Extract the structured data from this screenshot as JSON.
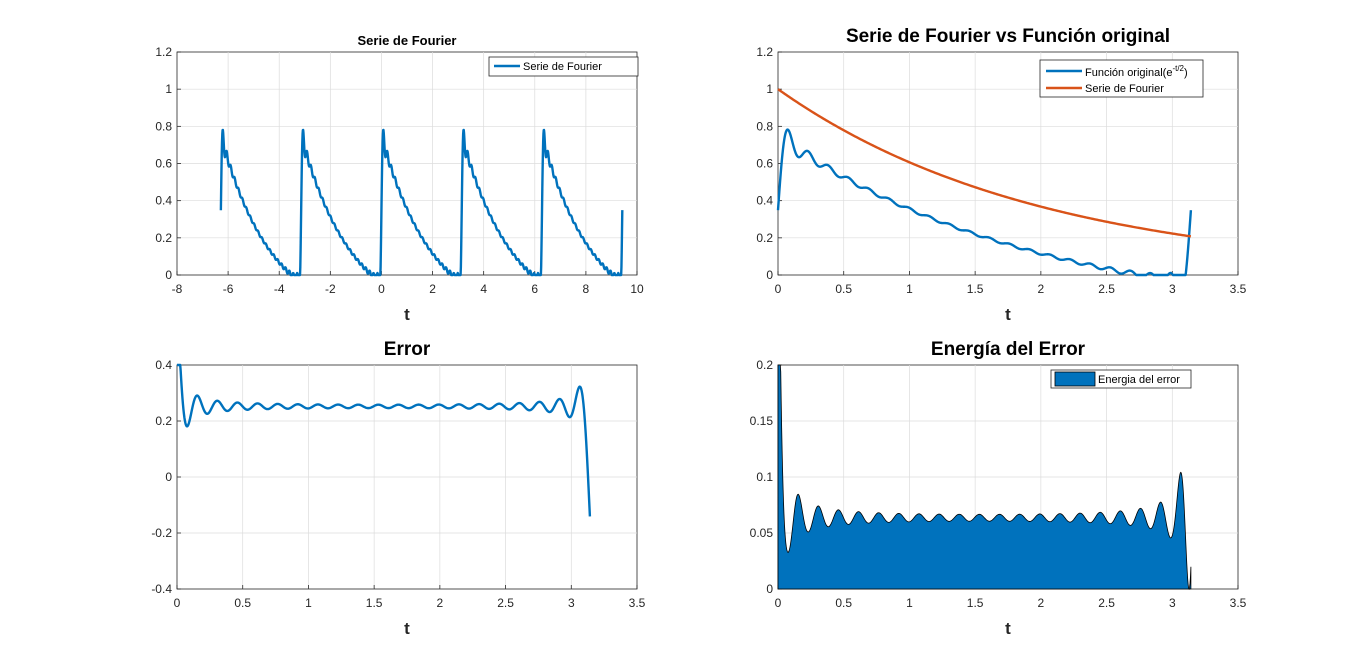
{
  "figure": {
    "background": "#ffffff"
  },
  "colors": {
    "series_blue": "#0072BD",
    "series_orange": "#D95319",
    "grid": "#dcdcdc",
    "axis": "#262626"
  },
  "chart_data": [
    {
      "id": "p1",
      "type": "line",
      "title": "Serie de Fourier",
      "title_style": "small",
      "xlabel": "t",
      "ylabel": "",
      "xlim": [
        -8,
        10
      ],
      "ylim": [
        0,
        1.2
      ],
      "xticks": [
        -8,
        -6,
        -4,
        -2,
        0,
        2,
        4,
        6,
        8,
        10
      ],
      "xtick_labels": [
        "-8",
        "-6",
        "-4",
        "-2",
        "0",
        "2",
        "4",
        "6",
        "8",
        "10"
      ],
      "yticks": [
        0,
        0.2,
        0.4,
        0.6,
        0.8,
        1,
        1.2
      ],
      "ytick_labels": [
        "0",
        "0.2",
        "0.4",
        "0.6",
        "0.8",
        "1",
        "1.2"
      ],
      "grid": true,
      "legend": {
        "placement": "top-right",
        "entries": [
          "Serie de Fourier"
        ]
      },
      "series": [
        {
          "name": "Serie de Fourier",
          "color": "#0072BD",
          "generator": "fourier_exp_periodic",
          "generator_params": {
            "harmonics": 20,
            "period_start": -6.2832,
            "period_end": 9.4248
          }
        }
      ]
    },
    {
      "id": "p2",
      "type": "line",
      "title": "Serie de Fourier vs Función original",
      "title_style": "large",
      "xlabel": "t",
      "ylabel": "",
      "xlim": [
        0,
        3.5
      ],
      "ylim": [
        0,
        1.2
      ],
      "xticks": [
        0,
        0.5,
        1,
        1.5,
        2,
        2.5,
        3,
        3.5
      ],
      "xtick_labels": [
        "0",
        "0.5",
        "1",
        "1.5",
        "2",
        "2.5",
        "3",
        "3.5"
      ],
      "yticks": [
        0,
        0.2,
        0.4,
        0.6,
        0.8,
        1,
        1.2
      ],
      "ytick_labels": [
        "0",
        "0.2",
        "0.4",
        "0.6",
        "0.8",
        "1",
        "1.2"
      ],
      "grid": true,
      "legend": {
        "placement": "top-right",
        "entries": [
          "Función original(e^-t/2)",
          "Serie de Fourier"
        ]
      },
      "series": [
        {
          "name": "Función original(e^-t/2)",
          "label_parts": {
            "base": "Función original(e",
            "sup": "-t/2",
            "tail": ")"
          },
          "color": "#0072BD",
          "generator": "fourier_exp_periodic",
          "generator_params": {
            "harmonics": 20,
            "period_start": 0,
            "period_end": 3.1416
          }
        },
        {
          "name": "Serie de Fourier",
          "color": "#D95319",
          "generator": "exp_neg_half",
          "generator_params": {
            "from": 0,
            "to": 3.1416
          }
        }
      ]
    },
    {
      "id": "p3",
      "type": "line",
      "title": "Error",
      "title_style": "large",
      "xlabel": "t",
      "ylabel": "",
      "xlim": [
        0,
        3.5
      ],
      "ylim": [
        -0.4,
        0.4
      ],
      "xticks": [
        0,
        0.5,
        1,
        1.5,
        2,
        2.5,
        3,
        3.5
      ],
      "xtick_labels": [
        "0",
        "0.5",
        "1",
        "1.5",
        "2",
        "2.5",
        "3",
        "3.5"
      ],
      "yticks": [
        -0.4,
        -0.2,
        0,
        0.2,
        0.4
      ],
      "ytick_labels": [
        "-0.4",
        "-0.2",
        "0",
        "0.2",
        "0.4"
      ],
      "grid": true,
      "legend": null,
      "series": [
        {
          "color": "#0072BD",
          "generator": "fourier_error",
          "generator_params": {
            "harmonics": 20,
            "from": 0,
            "to": 3.1416
          }
        }
      ]
    },
    {
      "id": "p4",
      "type": "area",
      "title": "Energía del Error",
      "title_style": "large",
      "xlabel": "t",
      "ylabel": "",
      "xlim": [
        0,
        3.5
      ],
      "ylim": [
        0,
        0.2
      ],
      "xticks": [
        0,
        0.5,
        1,
        1.5,
        2,
        2.5,
        3,
        3.5
      ],
      "xtick_labels": [
        "0",
        "0.5",
        "1",
        "1.5",
        "2",
        "2.5",
        "3",
        "3.5"
      ],
      "yticks": [
        0,
        0.05,
        0.1,
        0.15,
        0.2
      ],
      "ytick_labels": [
        "0",
        "0.05",
        "0.1",
        "0.15",
        "0.2"
      ],
      "grid": true,
      "legend": {
        "placement": "top-right",
        "entries": [
          "Energia del error"
        ]
      },
      "series": [
        {
          "name": "Energia del error",
          "color": "#0072BD",
          "edge_color": "#000000",
          "generator": "fourier_error_squared",
          "generator_params": {
            "harmonics": 20,
            "from": 0,
            "to": 3.1416
          }
        }
      ]
    }
  ]
}
